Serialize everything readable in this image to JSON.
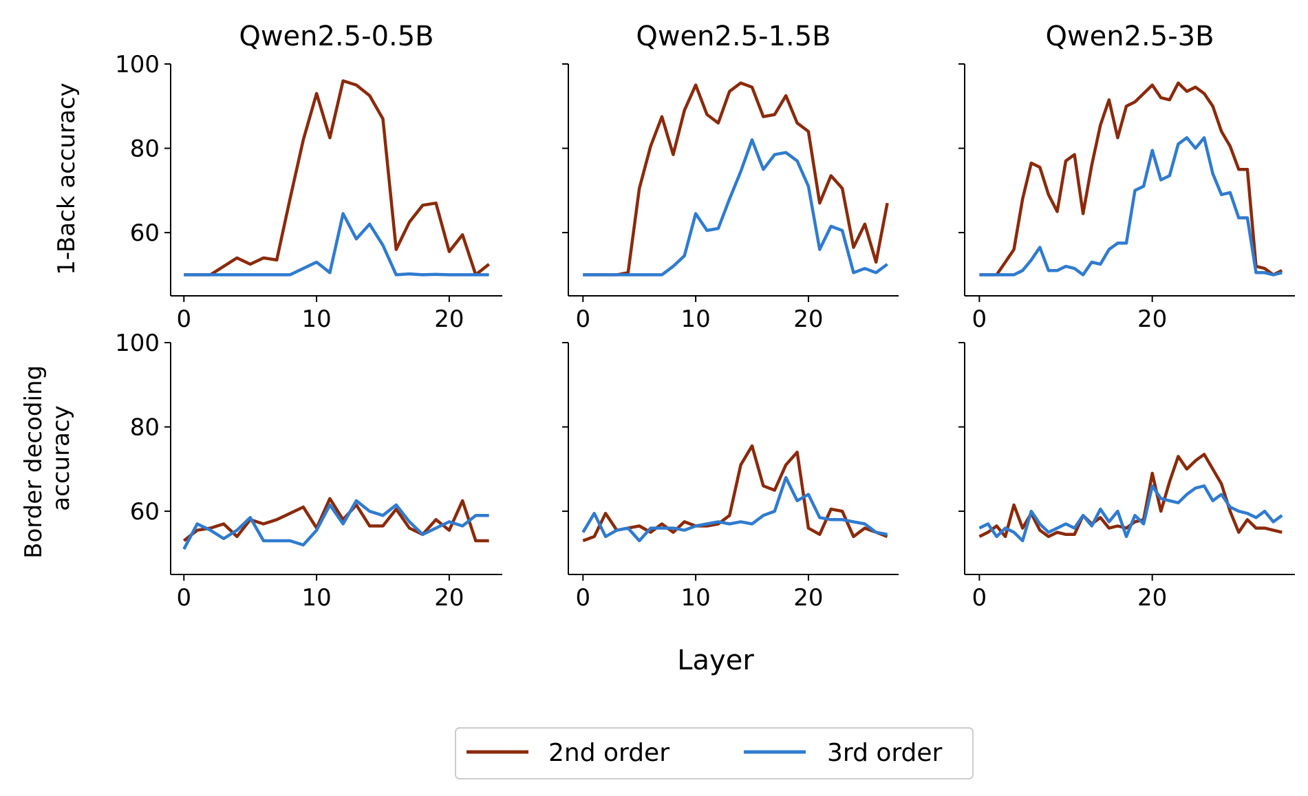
{
  "figure": {
    "xlabel": "Layer",
    "legend": {
      "placement": "bottom-center",
      "entries": [
        {
          "name": "2nd order",
          "color": "#8b2a0b"
        },
        {
          "name": "3rd order",
          "color": "#2f7bd0"
        }
      ]
    },
    "row_ylabels": [
      [
        "1-Back accuracy"
      ],
      [
        "Border decoding",
        "accuracy"
      ]
    ]
  },
  "chart_data": [
    {
      "type": "line",
      "row": 0,
      "col": 0,
      "title": "Qwen2.5-0.5B",
      "xticks": [
        0,
        10,
        20
      ],
      "yticks": [
        60,
        80,
        100
      ],
      "xlim": [
        -1,
        24
      ],
      "ylim": [
        45,
        100
      ],
      "x": [
        0,
        1,
        2,
        3,
        4,
        5,
        6,
        7,
        8,
        9,
        10,
        11,
        12,
        13,
        14,
        15,
        16,
        17,
        18,
        19,
        20,
        21,
        22,
        23
      ],
      "series": [
        {
          "name": "2nd order",
          "color": "#8b2a0b",
          "values": [
            50,
            50,
            50,
            52,
            54,
            52.5,
            54,
            53.5,
            68,
            82,
            93,
            82.5,
            96,
            95,
            92.5,
            87,
            56,
            62.5,
            66.5,
            67,
            55.5,
            59.5,
            50,
            52.5
          ]
        },
        {
          "name": "3rd order",
          "color": "#2f7bd0",
          "values": [
            50,
            50,
            50,
            50,
            50,
            50,
            50,
            50,
            50,
            51.5,
            53,
            50.5,
            64.5,
            58.5,
            62,
            57,
            50,
            50.2,
            50,
            50.1,
            50,
            50,
            50,
            50
          ]
        }
      ]
    },
    {
      "type": "line",
      "row": 0,
      "col": 1,
      "title": "Qwen2.5-1.5B",
      "xticks": [
        0,
        10,
        20
      ],
      "yticks": [
        60,
        80,
        100
      ],
      "xlim": [
        -1.3,
        28
      ],
      "ylim": [
        45,
        100
      ],
      "x": [
        0,
        1,
        2,
        3,
        4,
        5,
        6,
        7,
        8,
        9,
        10,
        11,
        12,
        13,
        14,
        15,
        16,
        17,
        18,
        19,
        20,
        21,
        22,
        23,
        24,
        25,
        26,
        27
      ],
      "series": [
        {
          "name": "2nd order",
          "color": "#8b2a0b",
          "values": [
            50,
            50,
            50,
            50,
            50.5,
            70.5,
            80.5,
            87.5,
            78.5,
            89,
            95,
            88,
            86,
            93.5,
            95.5,
            94.5,
            87.5,
            88,
            92.5,
            86,
            84,
            67,
            73.5,
            70.5,
            56.5,
            62,
            53,
            67
          ]
        },
        {
          "name": "3rd order",
          "color": "#2f7bd0",
          "values": [
            50,
            50,
            50,
            50,
            50,
            50,
            50,
            50,
            52,
            54.5,
            64.5,
            60.5,
            61,
            68,
            74.5,
            82,
            75,
            78.5,
            79,
            77,
            71,
            56,
            61.5,
            60.5,
            50.5,
            51.5,
            50.5,
            52.5
          ]
        }
      ]
    },
    {
      "type": "line",
      "row": 0,
      "col": 2,
      "title": "Qwen2.5-3B",
      "xticks": [
        0,
        20
      ],
      "yticks": [
        60,
        80,
        100
      ],
      "xlim": [
        -1.7,
        36.5
      ],
      "ylim": [
        45,
        100
      ],
      "x": [
        0,
        1,
        2,
        3,
        4,
        5,
        6,
        7,
        8,
        9,
        10,
        11,
        12,
        13,
        14,
        15,
        16,
        17,
        18,
        19,
        20,
        21,
        22,
        23,
        24,
        25,
        26,
        27,
        28,
        29,
        30,
        31,
        32,
        33,
        34,
        35
      ],
      "series": [
        {
          "name": "2nd order",
          "color": "#8b2a0b",
          "values": [
            50,
            50,
            50,
            53,
            56,
            68,
            76.5,
            75.5,
            69,
            65,
            77,
            78.5,
            64.5,
            76,
            85.5,
            91.5,
            82.5,
            90,
            91,
            93,
            95,
            92,
            91.5,
            95.5,
            93.5,
            94.5,
            93,
            90,
            84,
            80.5,
            75,
            75,
            52,
            51.5,
            50,
            51
          ]
        },
        {
          "name": "3rd order",
          "color": "#2f7bd0",
          "values": [
            50,
            50,
            50,
            50,
            50,
            51,
            53.5,
            56.5,
            51,
            51,
            52,
            51.5,
            50,
            53,
            52.5,
            56,
            57.5,
            57.5,
            70,
            71,
            79.5,
            72.5,
            73.5,
            81,
            82.5,
            80,
            82.5,
            74,
            69,
            69.5,
            63.5,
            63.5,
            50.5,
            50.5,
            50,
            50.5
          ]
        }
      ]
    },
    {
      "type": "line",
      "row": 1,
      "col": 0,
      "title": "",
      "xticks": [
        0,
        10,
        20
      ],
      "yticks": [
        60,
        80,
        100
      ],
      "xlim": [
        -1,
        24
      ],
      "ylim": [
        45,
        100
      ],
      "x": [
        0,
        1,
        2,
        3,
        4,
        5,
        6,
        7,
        8,
        9,
        10,
        11,
        12,
        13,
        14,
        15,
        16,
        17,
        18,
        19,
        20,
        21,
        22,
        23
      ],
      "series": [
        {
          "name": "2nd order",
          "color": "#8b2a0b",
          "values": [
            53,
            55.5,
            56,
            57,
            54,
            58,
            57,
            58,
            59.5,
            61,
            56,
            63,
            58,
            61.5,
            56.5,
            56.5,
            60.5,
            56,
            54.5,
            58,
            55.5,
            62.5,
            53,
            53
          ]
        },
        {
          "name": "3rd order",
          "color": "#2f7bd0",
          "values": [
            51,
            57,
            55.5,
            53.5,
            55.5,
            58.5,
            53,
            53,
            53,
            52,
            55.5,
            61.5,
            57,
            62.5,
            60,
            59,
            61.5,
            57.5,
            54.5,
            56,
            57.5,
            56.5,
            59,
            59
          ]
        }
      ]
    },
    {
      "type": "line",
      "row": 1,
      "col": 1,
      "title": "",
      "xticks": [
        0,
        10,
        20
      ],
      "yticks": [
        60,
        80,
        100
      ],
      "xlim": [
        -1.3,
        28
      ],
      "ylim": [
        45,
        100
      ],
      "x": [
        0,
        1,
        2,
        3,
        4,
        5,
        6,
        7,
        8,
        9,
        10,
        11,
        12,
        13,
        14,
        15,
        16,
        17,
        18,
        19,
        20,
        21,
        22,
        23,
        24,
        25,
        26,
        27
      ],
      "series": [
        {
          "name": "2nd order",
          "color": "#8b2a0b",
          "values": [
            53,
            54,
            59.5,
            55.5,
            56,
            56.5,
            55,
            57,
            55,
            57.5,
            56.5,
            56.5,
            57,
            59,
            71,
            75.5,
            66,
            65,
            71,
            74,
            56,
            54.5,
            60.5,
            60,
            54,
            56,
            55,
            54
          ]
        },
        {
          "name": "3rd order",
          "color": "#2f7bd0",
          "values": [
            55,
            59.5,
            54,
            55.5,
            56,
            53,
            56,
            56,
            56,
            55.5,
            56.5,
            57,
            57.5,
            57,
            57.5,
            57,
            59,
            60,
            68,
            62.5,
            64,
            58.5,
            58,
            58,
            57.5,
            57,
            55,
            54.5
          ]
        }
      ]
    },
    {
      "type": "line",
      "row": 1,
      "col": 2,
      "title": "",
      "xticks": [
        0,
        20
      ],
      "yticks": [
        60,
        80,
        100
      ],
      "xlim": [
        -1.7,
        36.5
      ],
      "ylim": [
        45,
        100
      ],
      "x": [
        0,
        1,
        2,
        3,
        4,
        5,
        6,
        7,
        8,
        9,
        10,
        11,
        12,
        13,
        14,
        15,
        16,
        17,
        18,
        19,
        20,
        21,
        22,
        23,
        24,
        25,
        26,
        27,
        28,
        29,
        30,
        31,
        32,
        33,
        34,
        35
      ],
      "series": [
        {
          "name": "2nd order",
          "color": "#8b2a0b",
          "values": [
            54,
            55,
            56.5,
            54,
            61.5,
            56,
            59.5,
            55.5,
            54,
            55,
            54.5,
            54.5,
            59,
            57,
            58.5,
            56,
            56.5,
            56,
            57.5,
            58,
            69,
            60,
            67,
            73,
            70,
            72,
            73.5,
            70,
            66.5,
            60,
            55,
            58,
            56,
            56,
            55.5,
            55
          ]
        },
        {
          "name": "3rd order",
          "color": "#2f7bd0",
          "values": [
            56,
            57,
            54,
            56,
            55,
            53,
            60,
            57,
            55,
            56,
            57,
            56,
            59,
            56.5,
            60.5,
            57.5,
            60,
            54,
            59,
            57,
            66,
            63,
            62.5,
            62,
            64,
            65.5,
            66,
            62.5,
            64,
            61,
            60,
            59.5,
            58.5,
            60,
            57.5,
            59
          ]
        }
      ]
    }
  ]
}
